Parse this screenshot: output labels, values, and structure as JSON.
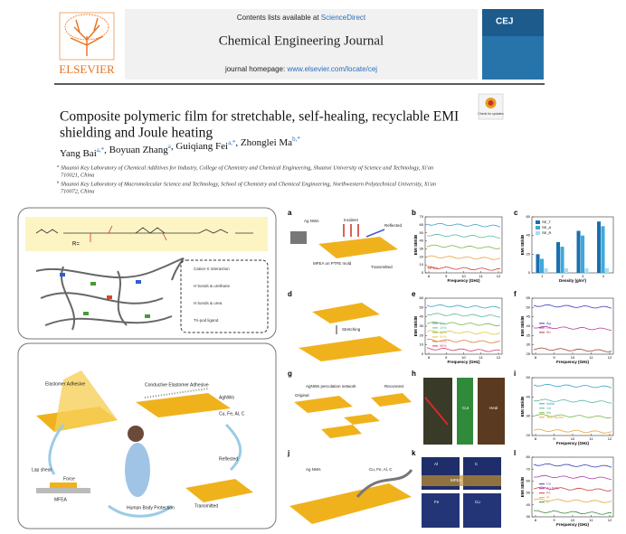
{
  "header": {
    "availability": "Contents lists available at ",
    "availability_link": "ScienceDirect",
    "journal": "Chemical Engineering Journal",
    "homepage": "journal homepage: ",
    "homepage_link": "www.elsevier.com/locate/cej",
    "publisher": "ELSEVIER",
    "cover": "CEJ",
    "badge": "Check for updates"
  },
  "article": {
    "title_lines": [
      "Composite polymeric film for stretchable, self-healing, recyclable EMI",
      "shielding and Joule heating"
    ],
    "authors": [
      {
        "name": "Yang Bai",
        "sup": "a,*"
      },
      {
        "name": ", Boyuan Zhang",
        "sup": "a"
      },
      {
        "name": ", Guiqiang Fei",
        "sup": "a,*"
      },
      {
        "name": ", Zhonglei Ma",
        "sup": "b,*"
      }
    ],
    "affiliations": [
      {
        "mark": "a",
        "lines": [
          "Shaanxi Key Laboratory of Chemical Additives for Industry, College of Chemistry and Chemical Engineering, Shaanxi University of Science and Technology, Xi'an",
          "710021, China"
        ]
      },
      {
        "mark": "b",
        "lines": [
          "Shaanxi Key Laboratory of Macromolecular Science and Technology, School of Chemistry and Chemical Engineering, Northwestern Polytechnical University, Xi'an",
          "710072, China"
        ]
      }
    ]
  },
  "graphical_abstract": {
    "molecule": {
      "r_group": "R="
    },
    "interactions": [
      "Cation-π interaction",
      "H bonds & urethane",
      "H bonds & urea",
      "Tri-pod ligand"
    ],
    "application": [
      "Elastomer Adhesive",
      "Conductive Elastomer Adhesive",
      "AgNWs",
      "Cu, Fe, Al, C",
      "Reflected",
      "Transmitted",
      "Human Body Protection",
      "Lap shear",
      "Force",
      "MFEA"
    ],
    "panels": [
      {
        "letter": "a",
        "labels": [
          "Ag NWs",
          "MFEA on PTFE mold",
          "Incident",
          "Reflected",
          "Transmitted"
        ]
      },
      {
        "letter": "b",
        "type": "line",
        "ylabel": "EMI SE/dB",
        "xlabel": "Frequency (GHz)",
        "yticks": [
          0,
          10,
          20,
          30,
          40,
          50,
          60,
          70
        ],
        "xticks": [
          8,
          9,
          10,
          11,
          12
        ],
        "annotation": "MFEA",
        "curves": [
          "#3aa0c8",
          "#5bb8a0",
          "#7ab648",
          "#e8a33c",
          "#d43a3a"
        ]
      },
      {
        "letter": "c",
        "type": "bar",
        "ylabel": "EMI SE/dB",
        "xlabel": "Density (g/m²)",
        "categories": [
          1,
          2,
          3,
          4
        ],
        "ylim": [
          0,
          60
        ],
        "yticks": [
          0,
          20,
          40,
          60
        ],
        "series": [
          {
            "name": "SE_T",
            "color": "#1a6fae",
            "values": [
              20,
              33,
              45,
              55
            ]
          },
          {
            "name": "SE_A",
            "color": "#3fa9d8",
            "values": [
              15,
              28,
              40,
              50
            ]
          },
          {
            "name": "SE_R",
            "color": "#a8dcf2",
            "values": [
              5,
              5,
              5,
              5
            ]
          }
        ]
      },
      {
        "letter": "d",
        "labels": [
          "Stretching"
        ]
      },
      {
        "letter": "e",
        "type": "line",
        "ylabel": "EMI SE/dB",
        "xlabel": "Frequency (GHz)",
        "yticks": [
          0,
          10,
          20,
          30,
          40,
          50,
          60
        ],
        "xticks": [
          8,
          9,
          10,
          11,
          12
        ],
        "legend": [
          {
            "name": "0%",
            "color": "#3aa0c8"
          },
          {
            "name": "10%",
            "color": "#5bb8a0"
          },
          {
            "name": "30%",
            "color": "#7ab648"
          },
          {
            "name": "50%",
            "color": "#e8c33c"
          },
          {
            "name": "70%",
            "color": "#e07a3a"
          },
          {
            "name": "90%",
            "color": "#d43a6a"
          }
        ]
      },
      {
        "letter": "f",
        "type": "line",
        "ylabel": "EMI SE/dB",
        "xlabel": "Frequency (GHz)",
        "yticks": [
          25,
          30,
          35,
          40,
          45,
          50,
          55
        ],
        "xticks": [
          8,
          9,
          10,
          11,
          12
        ],
        "legend": [
          {
            "name": "Ag",
            "color": "#3b3bb0"
          },
          {
            "name": "Ch",
            "color": "#b03ba0"
          },
          {
            "name": "Sh",
            "color": "#a0402a"
          }
        ]
      },
      {
        "letter": "g",
        "labels": [
          "AgNWs percolation network",
          "Original",
          "Reconnect"
        ]
      },
      {
        "letter": "h",
        "labels": [
          "Cut",
          "Heal"
        ]
      },
      {
        "letter": "i",
        "type": "line",
        "ylabel": "EMI SE/dB",
        "xlabel": "Frequency (GHz)",
        "yticks": [
          20,
          30,
          40,
          50
        ],
        "xticks": [
          8,
          9,
          10,
          11,
          12
        ],
        "legend": [
          {
            "name": "Initial",
            "color": "#3aa0c8"
          },
          {
            "name": "1st",
            "color": "#5bb8a0"
          },
          {
            "name": "5th",
            "color": "#7ab648"
          },
          {
            "name": "10th cycles",
            "color": "#e8a33c"
          }
        ]
      },
      {
        "letter": "j",
        "labels": [
          "Ag NWs",
          "Cu, Fe, Al, C"
        ]
      },
      {
        "letter": "k",
        "labels": [
          "Al",
          "C",
          "Fe",
          "Cu",
          "MFEA"
        ]
      },
      {
        "letter": "l",
        "type": "line",
        "ylabel": "EMI SE/dB",
        "xlabel": "Frequency (GHz)",
        "yticks": [
          30,
          40,
          50,
          60,
          70,
          80
        ],
        "xticks": [
          8,
          9,
          10,
          11,
          12
        ],
        "legend": [
          {
            "name": "Cu",
            "color": "#3b3bb0"
          },
          {
            "name": "Ag NWs",
            "color": "#b03ba0"
          },
          {
            "name": "Fe",
            "color": "#d43a3a"
          },
          {
            "name": "Al",
            "color": "#e8a33c"
          },
          {
            "name": "C",
            "color": "#3a8a3a"
          }
        ]
      }
    ]
  }
}
